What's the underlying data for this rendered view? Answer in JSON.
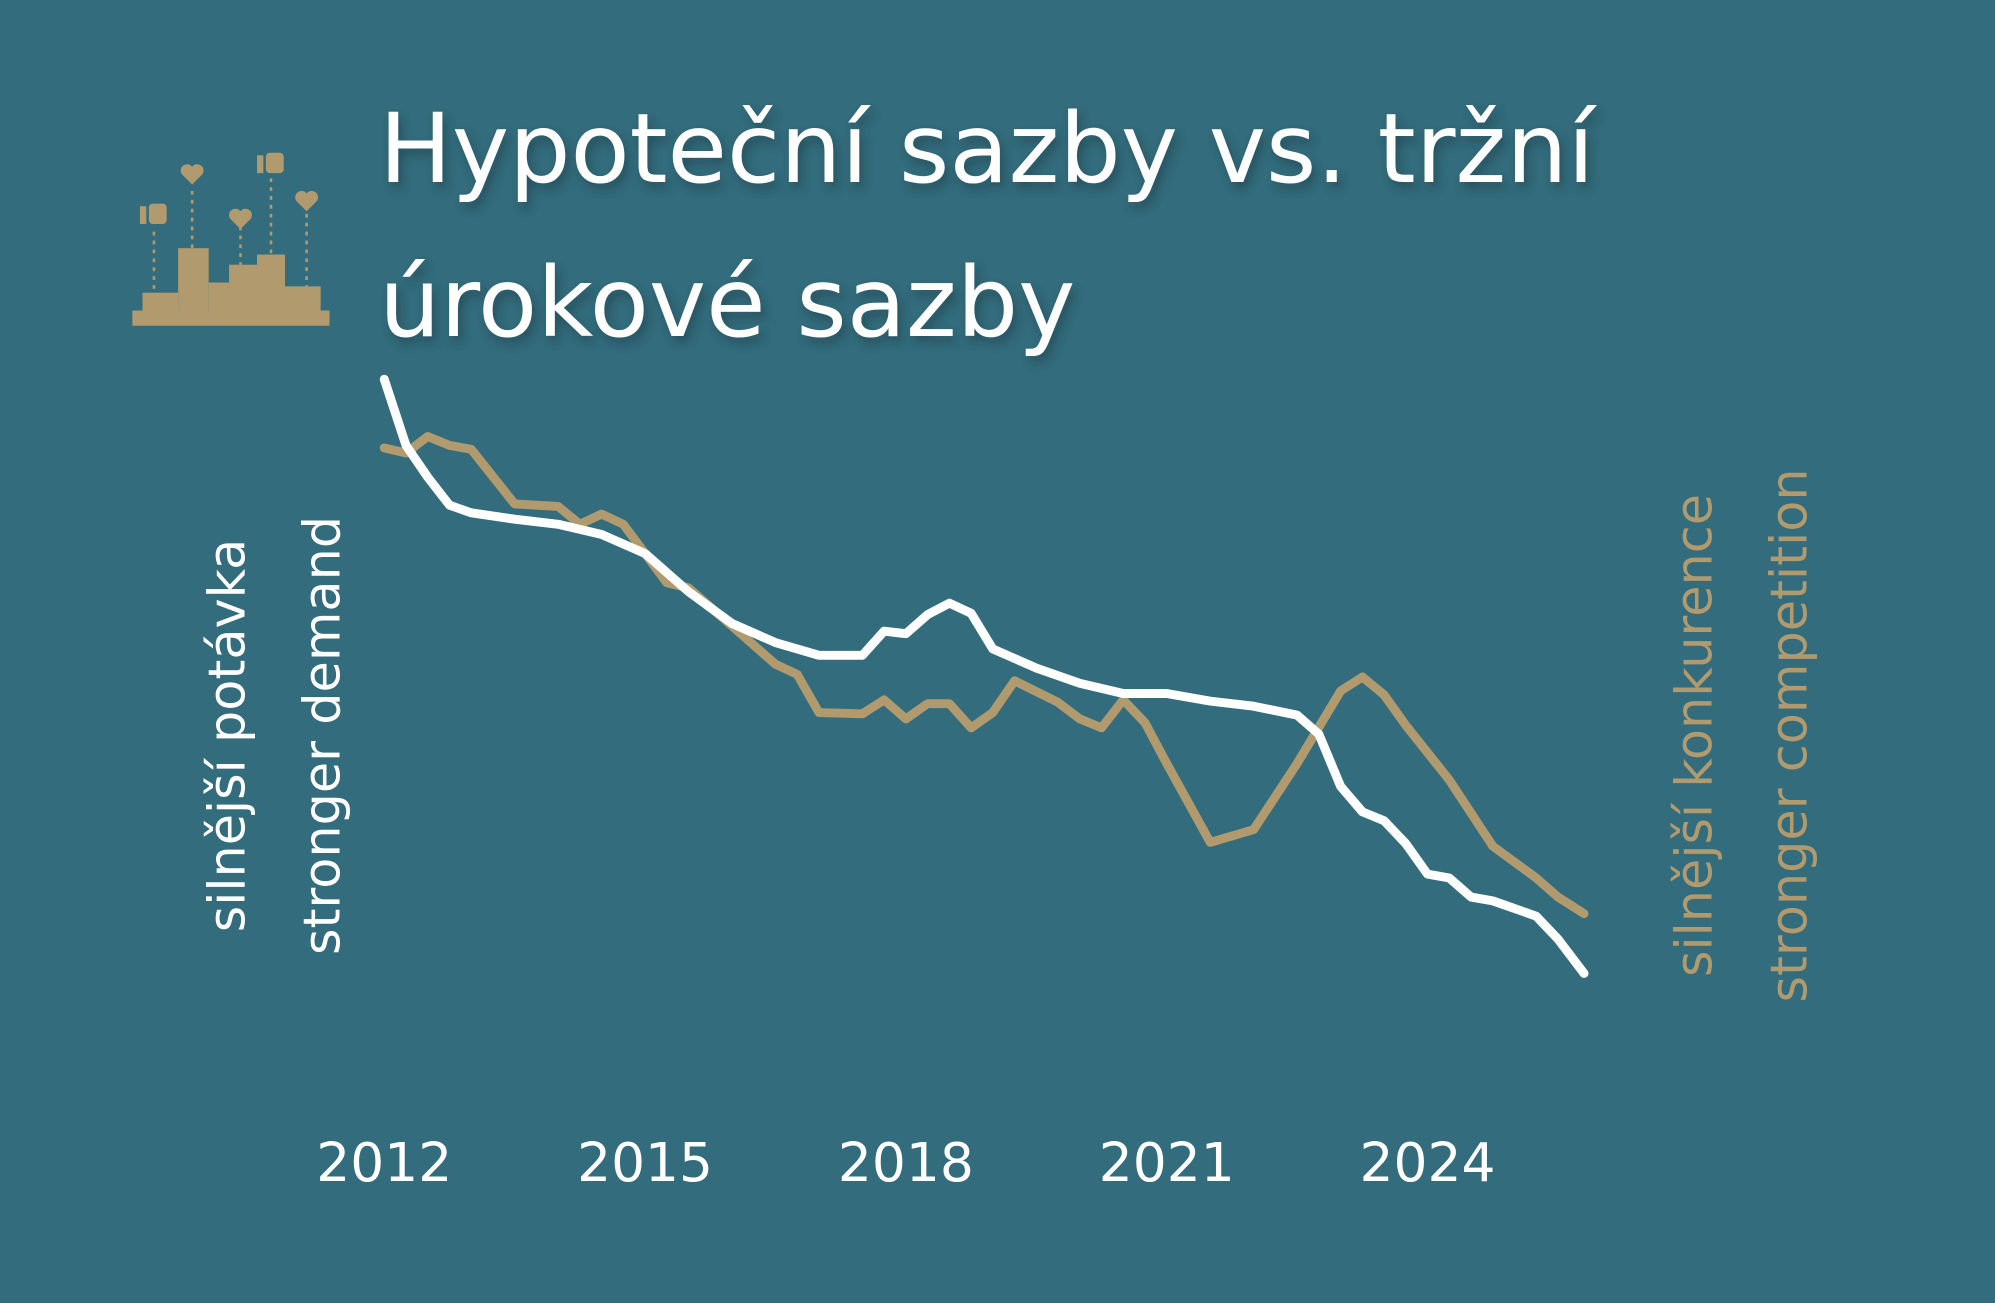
{
  "chart_data": {
    "type": "line",
    "title": [
      "Hypoteční sazby vs. tržní",
      "úrokové sazby"
    ],
    "left_labels": [
      "silnější potávka",
      "stronger demand"
    ],
    "right_labels": [
      "silnější konkurence",
      "stronger competition"
    ],
    "left_color": "#ffffff",
    "right_color": "#b09a6e",
    "xlim": [
      2012,
      2025.8
    ],
    "xticks": [
      2012,
      2015,
      2018,
      2021,
      2024
    ],
    "ylim": [
      0,
      100
    ],
    "series": [
      {
        "color": "#b09a6e",
        "x": [
          2012,
          2012.25,
          2012.5,
          2012.75,
          2013,
          2013.5,
          2014,
          2014.25,
          2014.5,
          2014.75,
          2015,
          2015.25,
          2015.5,
          2016,
          2016.5,
          2016.75,
          2017,
          2017.5,
          2017.75,
          2018,
          2018.25,
          2018.5,
          2018.75,
          2019,
          2019.25,
          2019.75,
          2020,
          2020.25,
          2020.5,
          2020.75,
          2021,
          2021.5,
          2022,
          2022.5,
          2023,
          2023.25,
          2023.5,
          2023.75,
          2024.25,
          2024.75,
          2025.25,
          2025.5,
          2025.8
        ],
        "values": [
          89.6,
          88.8,
          91.4,
          90,
          89.4,
          80.8,
          80.4,
          77.6,
          79.2,
          77.6,
          73,
          68.4,
          67.6,
          61.6,
          55.6,
          54,
          48,
          47.8,
          50,
          47,
          49.4,
          49.4,
          45.6,
          48,
          53,
          49.6,
          47,
          45.6,
          50,
          46.4,
          40,
          27.6,
          29.6,
          40,
          51.4,
          53.6,
          50.8,
          46,
          37.4,
          27,
          22,
          19,
          16.4
        ]
      },
      {
        "color": "#ffffff",
        "x": [
          2012,
          2012.25,
          2012.5,
          2012.75,
          2013,
          2013.5,
          2014,
          2014.5,
          2015,
          2015.5,
          2016,
          2016.5,
          2017,
          2017.5,
          2017.75,
          2018,
          2018.25,
          2018.5,
          2018.75,
          2019,
          2019.5,
          2020,
          2020.5,
          2021,
          2021.5,
          2022,
          2022.5,
          2022.75,
          2023,
          2023.25,
          2023.5,
          2023.75,
          2024,
          2024.25,
          2024.5,
          2024.75,
          2025.25,
          2025.5,
          2025.8
        ],
        "values": [
          100.4,
          90,
          85,
          80.6,
          79.4,
          78.4,
          77.6,
          76,
          73,
          67,
          62,
          59,
          57,
          57,
          60.8,
          60.4,
          63.4,
          65.2,
          63.6,
          58,
          55,
          52.6,
          51,
          51,
          49.8,
          49,
          47.6,
          44.6,
          36.4,
          32.4,
          31,
          27.4,
          22.6,
          22,
          19,
          18.4,
          16,
          12.4,
          7
        ]
      }
    ]
  }
}
